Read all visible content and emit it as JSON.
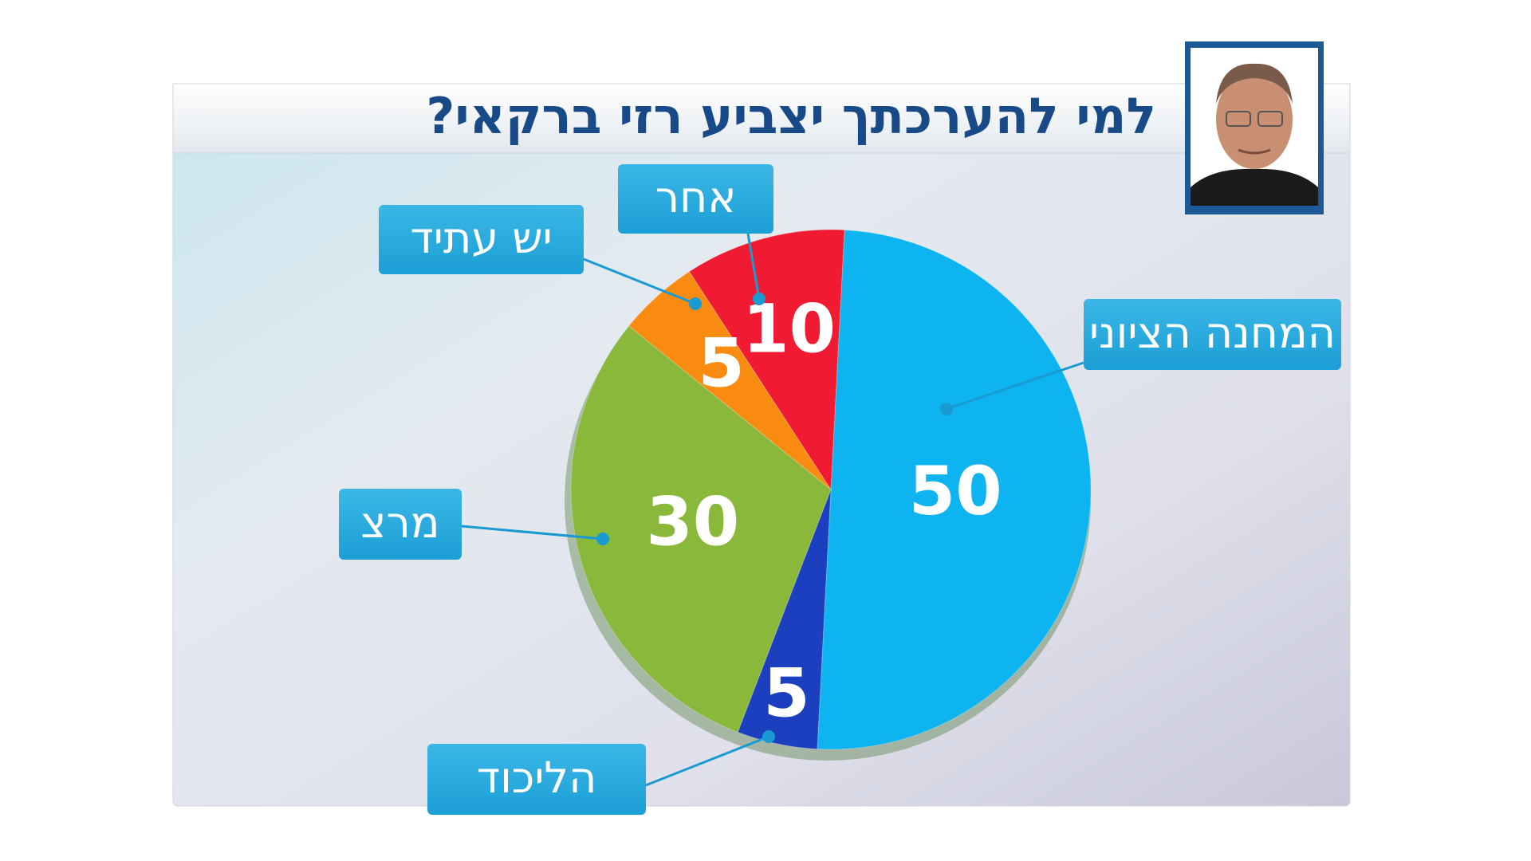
{
  "chart_data": {
    "type": "pie",
    "title": "למי להערכתך יצביע רזי ברקאי?",
    "categories": [
      "המחנה הציוני",
      "הליכוד",
      "מרצ",
      "יש עתיד",
      "אחר"
    ],
    "values": [
      50,
      5,
      30,
      5,
      10
    ],
    "colors": [
      "#0db4f0",
      "#1b3fbf",
      "#8ab83a",
      "#f98c10",
      "#f01a32"
    ]
  }
}
